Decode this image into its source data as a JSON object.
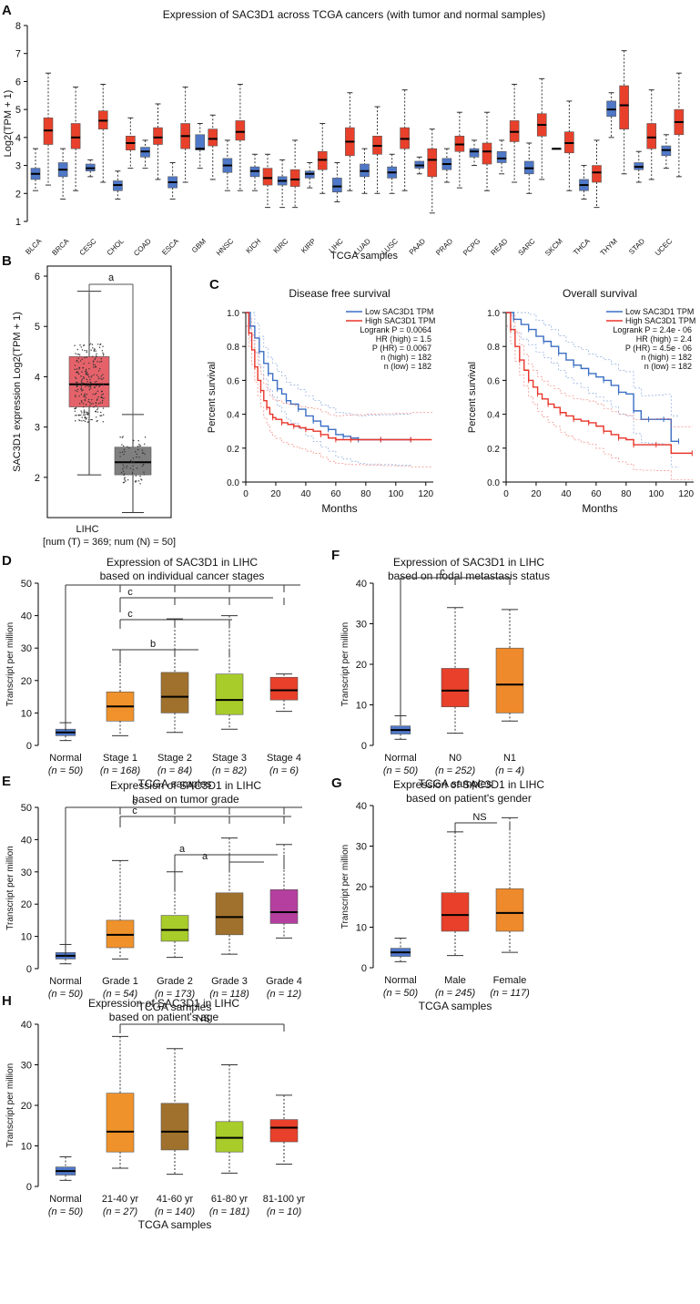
{
  "colors": {
    "tumor": "#e8402a",
    "normal": "#4f78c8",
    "gray_box": "#7f7f7f",
    "pink_box": "#e5626a",
    "low_line": "#3b6fc4",
    "high_line": "#e8352a",
    "stage1": "#f0922b",
    "stage2": "#a0712c",
    "stage3": "#a8cc2a",
    "stage4": "#e8402a",
    "grade4": "#b43f9e",
    "male": "#e8402a",
    "female": "#ee8a2c"
  },
  "chart_data": [
    {
      "panel": "A",
      "type": "box",
      "title": "Expression of SAC3D1 across TCGA cancers (with tumor and normal samples)",
      "ylabel": "Log2(TPM + 1)",
      "xlabel": "TCGA samples",
      "ylim": [
        1,
        8
      ],
      "yticks": [
        1,
        2,
        3,
        4,
        5,
        6,
        7,
        8
      ],
      "categories": [
        "BLCA",
        "BRCA",
        "CESC",
        "CHOL",
        "COAD",
        "ESCA",
        "GBM",
        "HNSC",
        "KICH",
        "KIRC",
        "KIRP",
        "LIHC",
        "LUAD",
        "LUSC",
        "PAAD",
        "PRAD",
        "PCPG",
        "READ",
        "SARC",
        "SKCM",
        "THCA",
        "THYM",
        "STAD",
        "UCEC"
      ],
      "normal": [
        [
          2.1,
          2.5,
          2.7,
          2.9,
          3.6
        ],
        [
          1.8,
          2.6,
          2.85,
          3.1,
          3.6
        ],
        [
          2.6,
          2.8,
          2.9,
          3.05,
          3.2
        ],
        [
          1.8,
          2.1,
          2.3,
          2.45,
          2.8
        ],
        [
          2.9,
          3.3,
          3.5,
          3.65,
          3.9
        ],
        [
          1.8,
          2.2,
          2.4,
          2.6,
          3.1
        ],
        [
          2.9,
          3.55,
          3.6,
          4.1,
          4.5
        ],
        [
          2.1,
          2.75,
          3.0,
          3.25,
          3.9
        ],
        [
          2.1,
          2.6,
          2.8,
          2.95,
          3.4
        ],
        [
          1.5,
          2.3,
          2.45,
          2.6,
          3.2
        ],
        [
          2.2,
          2.55,
          2.7,
          2.8,
          3.1
        ],
        [
          1.7,
          2.05,
          2.25,
          2.55,
          3.1
        ],
        [
          2.0,
          2.6,
          2.8,
          3.05,
          3.6
        ],
        [
          2.0,
          2.55,
          2.75,
          2.95,
          3.4
        ],
        [
          2.7,
          2.9,
          3.0,
          3.15,
          3.3
        ],
        [
          2.4,
          2.85,
          3.05,
          3.25,
          3.6
        ],
        [
          3.0,
          3.3,
          3.5,
          3.6,
          3.9
        ],
        [
          2.7,
          3.1,
          3.25,
          3.5,
          3.9
        ],
        [
          2.0,
          2.7,
          2.9,
          3.15,
          3.8
        ],
        [
          3.6,
          3.6,
          3.6,
          3.6,
          3.6
        ],
        [
          1.8,
          2.1,
          2.3,
          2.5,
          3.0
        ],
        [
          4.0,
          4.75,
          5.0,
          5.3,
          5.6
        ],
        [
          2.4,
          2.85,
          2.95,
          3.1,
          3.5
        ],
        [
          2.9,
          3.35,
          3.55,
          3.7,
          4.1
        ]
      ],
      "tumor": [
        [
          2.3,
          3.75,
          4.25,
          4.7,
          6.3
        ],
        [
          2.1,
          3.6,
          4.0,
          4.5,
          5.8
        ],
        [
          2.4,
          4.3,
          4.6,
          4.95,
          5.9
        ],
        [
          2.9,
          3.55,
          3.8,
          4.05,
          4.7
        ],
        [
          2.5,
          3.75,
          4.0,
          4.35,
          5.2
        ],
        [
          2.4,
          3.6,
          4.05,
          4.5,
          5.8
        ],
        [
          2.5,
          3.7,
          3.95,
          4.3,
          4.8
        ],
        [
          2.1,
          3.9,
          4.2,
          4.6,
          5.9
        ],
        [
          1.5,
          2.3,
          2.55,
          2.9,
          3.4
        ],
        [
          1.5,
          2.25,
          2.5,
          2.85,
          3.9
        ],
        [
          2.0,
          2.85,
          3.2,
          3.5,
          4.5
        ],
        [
          2.1,
          3.35,
          3.85,
          4.35,
          5.6
        ],
        [
          2.0,
          3.4,
          3.7,
          4.05,
          5.1
        ],
        [
          2.1,
          3.6,
          3.95,
          4.35,
          5.7
        ],
        [
          1.3,
          2.6,
          3.2,
          3.6,
          4.3
        ],
        [
          2.2,
          3.5,
          3.75,
          4.05,
          4.9
        ],
        [
          2.1,
          3.05,
          3.5,
          3.8,
          4.9
        ],
        [
          2.4,
          3.85,
          4.2,
          4.6,
          5.9
        ],
        [
          2.5,
          4.05,
          4.45,
          4.85,
          6.1
        ],
        [
          2.1,
          3.45,
          3.8,
          4.2,
          5.3
        ],
        [
          1.5,
          2.4,
          2.75,
          3.0,
          3.9
        ],
        [
          2.7,
          4.3,
          5.15,
          5.85,
          7.1
        ],
        [
          2.5,
          3.6,
          4.0,
          4.5,
          5.7
        ],
        [
          2.6,
          4.1,
          4.55,
          5.0,
          6.3
        ]
      ]
    },
    {
      "panel": "B",
      "type": "box",
      "ylabel": "SAC3D1 expression Log2(TPM + 1)",
      "ylim": [
        1.2,
        6.2
      ],
      "yticks": [
        2,
        3,
        4,
        5,
        6
      ],
      "category": "LIHC",
      "subtitle": "[num (T) = 369; num (N) = 50]",
      "significance": "a",
      "tumor": [
        2.05,
        3.4,
        3.85,
        4.4,
        5.7
      ],
      "normal": [
        1.3,
        2.05,
        2.3,
        2.6,
        3.25
      ]
    },
    {
      "panel": "C1",
      "type": "line",
      "title": "Disease free survival",
      "ylabel": "Percent survival",
      "xlabel": "Months",
      "xlim": [
        0,
        125
      ],
      "ylim": [
        0,
        1
      ],
      "xticks": [
        0,
        20,
        40,
        60,
        80,
        100,
        120
      ],
      "yticks": [
        0.0,
        0.2,
        0.4,
        0.6,
        0.8,
        1.0
      ],
      "legend": [
        "Low SAC3D1 TPM",
        "High SAC3D1 TPM"
      ],
      "stats": [
        "Logrank P = 0.0064",
        "HR (high) = 1.5",
        "P (HR) = 0.0067",
        "n (high) = 182",
        "n (low) = 182"
      ],
      "series": [
        {
          "name": "Low SAC3D1 TPM",
          "x": [
            0,
            3,
            6,
            9,
            12,
            15,
            18,
            21,
            24,
            27,
            30,
            35,
            40,
            45,
            50,
            55,
            60,
            65,
            70,
            75,
            80,
            90,
            100,
            110
          ],
          "y": [
            1.0,
            0.92,
            0.85,
            0.77,
            0.7,
            0.64,
            0.6,
            0.55,
            0.52,
            0.48,
            0.46,
            0.43,
            0.39,
            0.36,
            0.33,
            0.31,
            0.28,
            0.27,
            0.26,
            0.25,
            0.25,
            0.25,
            0.25,
            0.25
          ]
        },
        {
          "name": "High SAC3D1 TPM",
          "x": [
            0,
            2,
            4,
            6,
            8,
            10,
            12,
            14,
            16,
            18,
            20,
            24,
            28,
            32,
            36,
            40,
            45,
            50,
            55,
            60,
            65,
            70,
            80,
            90,
            100,
            110,
            124
          ],
          "y": [
            1.0,
            0.88,
            0.78,
            0.68,
            0.6,
            0.54,
            0.48,
            0.44,
            0.4,
            0.38,
            0.37,
            0.35,
            0.34,
            0.33,
            0.32,
            0.31,
            0.3,
            0.28,
            0.26,
            0.25,
            0.25,
            0.25,
            0.25,
            0.25,
            0.25,
            0.25,
            0.25
          ]
        }
      ]
    },
    {
      "panel": "C2",
      "type": "line",
      "title": "Overall survival",
      "ylabel": "Percent survival",
      "xlabel": "Months",
      "xlim": [
        0,
        125
      ],
      "ylim": [
        0,
        1
      ],
      "xticks": [
        0,
        20,
        40,
        60,
        80,
        100,
        120
      ],
      "yticks": [
        0.0,
        0.2,
        0.4,
        0.6,
        0.8,
        1.0
      ],
      "legend": [
        "Low SAC3D1 TPM",
        "High SAC3D1 TPM"
      ],
      "stats": [
        "Logrank P = 2.4e - 06",
        "HR (high) = 2.4",
        "P (HR) = 4.5e - 06",
        "n (high) = 182",
        "n (low) = 182"
      ],
      "series": [
        {
          "name": "Low SAC3D1 TPM",
          "x": [
            0,
            5,
            10,
            15,
            20,
            25,
            30,
            35,
            40,
            45,
            50,
            55,
            60,
            65,
            70,
            75,
            80,
            85,
            90,
            95,
            100,
            105,
            110,
            115
          ],
          "y": [
            1.0,
            0.96,
            0.93,
            0.9,
            0.86,
            0.83,
            0.8,
            0.76,
            0.72,
            0.69,
            0.67,
            0.64,
            0.62,
            0.6,
            0.57,
            0.53,
            0.52,
            0.42,
            0.37,
            0.37,
            0.37,
            0.37,
            0.24,
            0.24
          ]
        },
        {
          "name": "High SAC3D1 TPM",
          "x": [
            0,
            3,
            6,
            9,
            12,
            15,
            18,
            21,
            24,
            28,
            32,
            36,
            40,
            45,
            50,
            55,
            60,
            65,
            70,
            75,
            80,
            85,
            90,
            100,
            110,
            124
          ],
          "y": [
            1.0,
            0.9,
            0.8,
            0.72,
            0.66,
            0.6,
            0.56,
            0.52,
            0.49,
            0.46,
            0.44,
            0.41,
            0.39,
            0.37,
            0.36,
            0.35,
            0.33,
            0.3,
            0.28,
            0.26,
            0.25,
            0.22,
            0.22,
            0.22,
            0.17,
            0.17
          ]
        }
      ]
    },
    {
      "panel": "D",
      "type": "box",
      "title": "Expression of SAC3D1 in LIHC based on individual cancer stages",
      "title_lines": [
        "Expression of SAC3D1 in LIHC",
        "based on individual cancer stages"
      ],
      "ylabel": "Transcript per million",
      "xlabel": "TCGA samples",
      "ylim": [
        0,
        50
      ],
      "yticks": [
        0,
        10,
        20,
        30,
        40,
        50
      ],
      "categories": [
        "Normal",
        "Stage 1",
        "Stage 2",
        "Stage 3",
        "Stage 4"
      ],
      "n_labels": [
        "(n = 50)",
        "(n = 168)",
        "(n = 84)",
        "(n = 82)",
        "(n = 6)"
      ],
      "boxes": [
        [
          1.5,
          3,
          4,
          5,
          7
        ],
        [
          3,
          7.5,
          12,
          16.5,
          29.5
        ],
        [
          4,
          10,
          15,
          22.5,
          39
        ],
        [
          5,
          9.5,
          14,
          22,
          40
        ],
        [
          10.5,
          14,
          17,
          21,
          22
        ]
      ],
      "significance": [
        "c",
        "b"
      ]
    },
    {
      "panel": "F",
      "type": "box",
      "title": "Expression of SAC3D1 in LIHC based on nodal metastasis status",
      "title_lines": [
        "Expression of SAC3D1 in LIHC",
        "based on nodal metastasis status"
      ],
      "ylabel": "Transcript per million",
      "xlabel": "TCGA samples",
      "ylim": [
        0,
        40
      ],
      "yticks": [
        0,
        10,
        20,
        30,
        40
      ],
      "categories": [
        "Normal",
        "N0",
        "N1"
      ],
      "n_labels": [
        "(n = 50)",
        "(n = 252)",
        "(n = 4)"
      ],
      "boxes": [
        [
          1.5,
          2.8,
          3.8,
          4.8,
          7.3
        ],
        [
          3,
          9.5,
          13.5,
          19,
          34
        ],
        [
          6,
          8,
          15,
          24,
          33.5
        ]
      ],
      "significance": [
        "c"
      ]
    },
    {
      "panel": "E",
      "type": "box",
      "title": "Expression of SAC3D1 in LIHC based on tumor grade",
      "title_lines": [
        "Expression of SAC3D1 in LIHC",
        "based on tumor grade"
      ],
      "ylabel": "Transcript per million",
      "xlabel": "TCGA samples",
      "ylim": [
        0,
        50
      ],
      "yticks": [
        0,
        10,
        20,
        30,
        40,
        50
      ],
      "categories": [
        "Normal",
        "Grade 1",
        "Grade 2",
        "Grade 3",
        "Grade 4"
      ],
      "n_labels": [
        "(n = 50)",
        "(n = 54)",
        "(n = 173)",
        "(n = 118)",
        "(n = 12)"
      ],
      "boxes": [
        [
          1.5,
          3,
          4,
          5,
          7.5
        ],
        [
          3,
          6.5,
          10.5,
          15,
          33.5
        ],
        [
          3.5,
          8.5,
          12,
          16.5,
          30
        ],
        [
          4.5,
          10.5,
          16,
          23.5,
          40.5
        ],
        [
          9.5,
          14,
          17.5,
          24.5,
          38.5
        ]
      ],
      "significance": [
        "c",
        "a",
        "a"
      ]
    },
    {
      "panel": "G",
      "type": "box",
      "title": "Expression of SAC3D1 in LIHC based on patient's gender",
      "title_lines": [
        "Expression of SAC3D1 in LIHC",
        "based on patient's gender"
      ],
      "ylabel": "Transcript per million",
      "xlabel": "TCGA samples",
      "ylim": [
        0,
        40
      ],
      "yticks": [
        0,
        10,
        20,
        30,
        40
      ],
      "categories": [
        "Normal",
        "Male",
        "Female"
      ],
      "n_labels": [
        "(n = 50)",
        "(n = 245)",
        "(n = 117)"
      ],
      "boxes": [
        [
          1.5,
          2.8,
          3.8,
          4.8,
          7.3
        ],
        [
          3,
          9,
          13,
          18.5,
          33.5
        ],
        [
          3.8,
          9,
          13.5,
          19.5,
          37
        ]
      ],
      "significance": [
        "NS"
      ]
    },
    {
      "panel": "H",
      "type": "box",
      "title": "Expression of SAC3D1 in LIHC based on patient's age",
      "title_lines": [
        "Expression of SAC3D1 in LIHC",
        "based on patient's age"
      ],
      "ylabel": "Transcript per million",
      "xlabel": "TCGA samples",
      "ylim": [
        0,
        40
      ],
      "yticks": [
        0,
        10,
        20,
        30,
        40
      ],
      "categories": [
        "Normal",
        "21-40 yr",
        "41-60 yr",
        "61-80 yr",
        "81-100 yr"
      ],
      "n_labels": [
        "(n = 50)",
        "(n = 27)",
        "(n = 140)",
        "(n = 181)",
        "(n = 10)"
      ],
      "boxes": [
        [
          1.5,
          2.8,
          3.8,
          4.8,
          7.3
        ],
        [
          4.5,
          8.5,
          13.5,
          23,
          37
        ],
        [
          3,
          9,
          13.5,
          20.5,
          34
        ],
        [
          3.3,
          8.5,
          12,
          16,
          30
        ],
        [
          5.5,
          11,
          14.5,
          16.5,
          22.5
        ]
      ],
      "significance": [
        "NS"
      ]
    }
  ]
}
